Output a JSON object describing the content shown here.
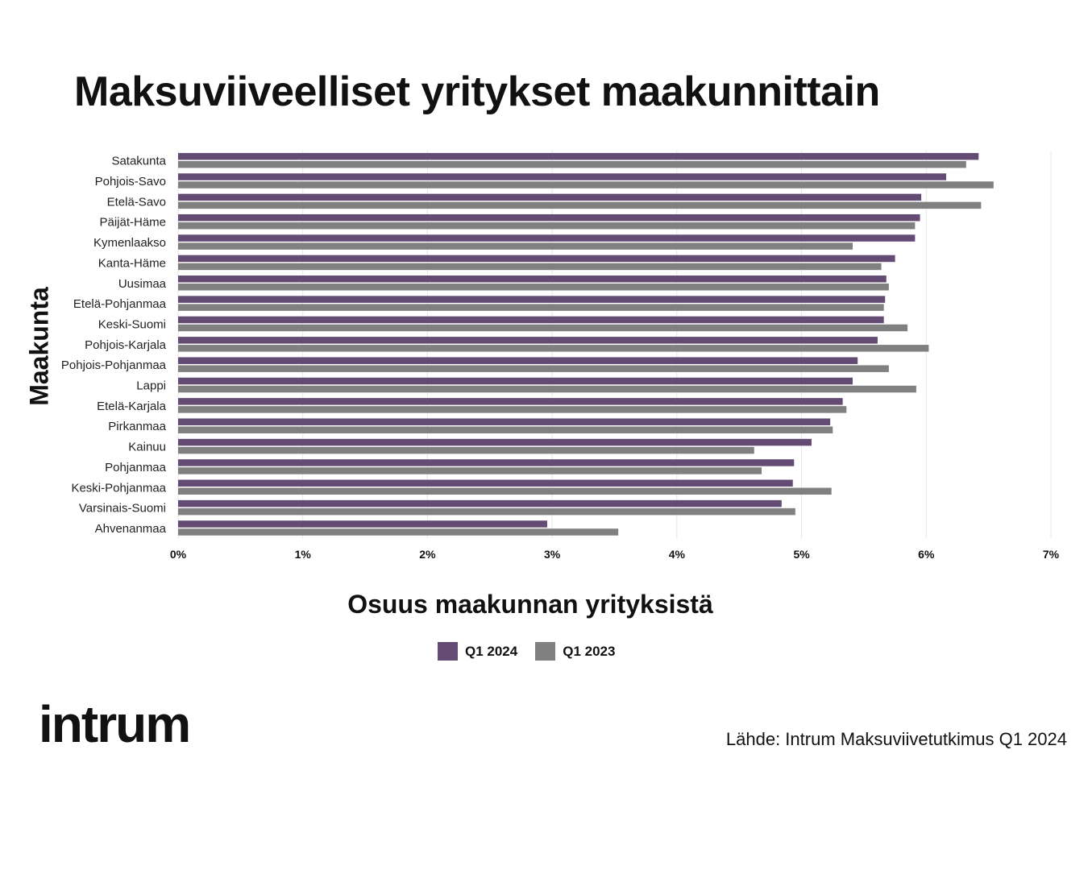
{
  "page": {
    "title": "Maksuviiveelliset yritykset maakunnittain",
    "source": "Lähde: Intrum Maksuviivetutkimus Q1 2024",
    "logo_text": "intrum"
  },
  "chart_data": {
    "type": "bar",
    "orientation": "horizontal",
    "title": "Maksuviiveelliset yritykset maakunnittain",
    "xlabel": "Osuus maakunnan yrityksistä",
    "ylabel": "Maakunta",
    "xlim": [
      0,
      7
    ],
    "xticks": [
      {
        "value": 0,
        "label": "0%"
      },
      {
        "value": 1,
        "label": "1%"
      },
      {
        "value": 2,
        "label": "2%"
      },
      {
        "value": 3,
        "label": "3%"
      },
      {
        "value": 4,
        "label": "4%"
      },
      {
        "value": 5,
        "label": "5%"
      },
      {
        "value": 6,
        "label": "6%"
      },
      {
        "value": 7,
        "label": "7%"
      }
    ],
    "grid": "vertical",
    "legend_position": "bottom",
    "categories": [
      "Satakunta",
      "Pohjois-Savo",
      "Etelä-Savo",
      "Päijät-Häme",
      "Kymenlaakso",
      "Kanta-Häme",
      "Uusimaa",
      "Etelä-Pohjanmaa",
      "Keski-Suomi",
      "Pohjois-Karjala",
      "Pohjois-Pohjanmaa",
      "Lappi",
      "Etelä-Karjala",
      "Pirkanmaa",
      "Kainuu",
      "Pohjanmaa",
      "Keski-Pohjanmaa",
      "Varsinais-Suomi",
      "Ahvenanmaa"
    ],
    "series": [
      {
        "name": "Q1 2024",
        "color": "#634b74",
        "values": [
          6.42,
          6.16,
          5.96,
          5.95,
          5.91,
          5.75,
          5.68,
          5.67,
          5.66,
          5.61,
          5.45,
          5.41,
          5.33,
          5.23,
          5.08,
          4.94,
          4.93,
          4.84,
          2.96
        ]
      },
      {
        "name": "Q1 2023",
        "color": "#808080",
        "values": [
          6.32,
          6.54,
          6.44,
          5.91,
          5.41,
          5.64,
          5.7,
          5.66,
          5.85,
          6.02,
          5.7,
          5.92,
          5.36,
          5.25,
          4.62,
          4.68,
          5.24,
          4.95,
          3.53
        ]
      }
    ]
  }
}
